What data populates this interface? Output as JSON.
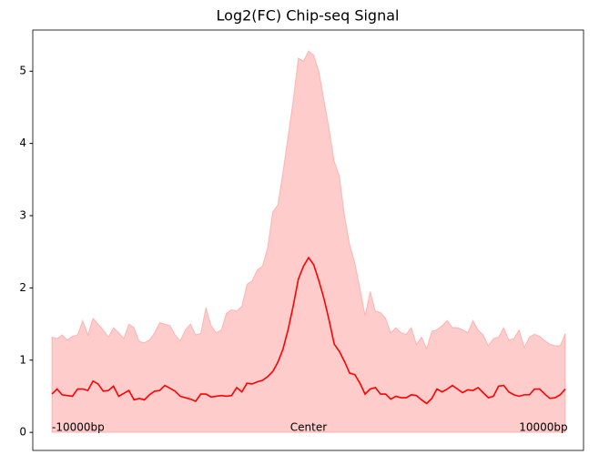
{
  "chart_data": {
    "type": "line",
    "title": "Log2(FC) Chip-seq Signal",
    "x": [
      -10000,
      -9800,
      -9600,
      -9400,
      -9200,
      -9000,
      -8800,
      -8600,
      -8400,
      -8200,
      -8000,
      -7800,
      -7600,
      -7400,
      -7200,
      -7000,
      -6800,
      -6600,
      -6400,
      -6200,
      -6000,
      -5800,
      -5600,
      -5400,
      -5200,
      -5000,
      -4800,
      -4600,
      -4400,
      -4200,
      -4000,
      -3800,
      -3600,
      -3400,
      -3200,
      -3000,
      -2800,
      -2600,
      -2400,
      -2200,
      -2000,
      -1800,
      -1600,
      -1400,
      -1200,
      -1000,
      -800,
      -600,
      -400,
      -200,
      0,
      200,
      400,
      600,
      800,
      1000,
      1200,
      1400,
      1600,
      1800,
      2000,
      2200,
      2400,
      2600,
      2800,
      3000,
      3200,
      3400,
      3600,
      3800,
      4000,
      4200,
      4400,
      4600,
      4800,
      5000,
      5200,
      5400,
      5600,
      5800,
      6000,
      6200,
      6400,
      6600,
      6800,
      7000,
      7200,
      7400,
      7600,
      7800,
      8000,
      8200,
      8400,
      8600,
      8800,
      9000,
      9200,
      9400,
      9600,
      9800,
      10000
    ],
    "line": {
      "color": "#ff0000",
      "values": [
        0.53,
        0.6,
        0.52,
        0.51,
        0.5,
        0.6,
        0.6,
        0.58,
        0.71,
        0.67,
        0.57,
        0.58,
        0.64,
        0.5,
        0.54,
        0.58,
        0.45,
        0.47,
        0.45,
        0.52,
        0.57,
        0.58,
        0.65,
        0.61,
        0.57,
        0.5,
        0.48,
        0.46,
        0.43,
        0.53,
        0.53,
        0.49,
        0.5,
        0.51,
        0.5,
        0.51,
        0.62,
        0.56,
        0.68,
        0.67,
        0.7,
        0.72,
        0.77,
        0.84,
        0.97,
        1.15,
        1.42,
        1.75,
        2.12,
        2.3,
        2.42,
        2.32,
        2.1,
        1.85,
        1.55,
        1.22,
        1.12,
        0.98,
        0.82,
        0.8,
        0.68,
        0.53,
        0.6,
        0.62,
        0.53,
        0.53,
        0.46,
        0.5,
        0.48,
        0.48,
        0.52,
        0.51,
        0.45,
        0.4,
        0.47,
        0.6,
        0.56,
        0.6,
        0.65,
        0.6,
        0.55,
        0.59,
        0.58,
        0.62,
        0.55,
        0.48,
        0.5,
        0.64,
        0.65,
        0.56,
        0.52,
        0.5,
        0.52,
        0.52,
        0.6,
        0.6,
        0.53,
        0.47,
        0.48,
        0.52,
        0.6
      ]
    },
    "band": {
      "color": "#ff0000",
      "upper": [
        1.32,
        1.3,
        1.35,
        1.28,
        1.33,
        1.35,
        1.55,
        1.35,
        1.58,
        1.5,
        1.42,
        1.32,
        1.45,
        1.38,
        1.3,
        1.5,
        1.45,
        1.26,
        1.24,
        1.28,
        1.38,
        1.52,
        1.5,
        1.48,
        1.35,
        1.27,
        1.42,
        1.5,
        1.35,
        1.37,
        1.73,
        1.48,
        1.38,
        1.42,
        1.65,
        1.7,
        1.68,
        1.75,
        2.05,
        2.1,
        2.25,
        2.3,
        2.55,
        3.05,
        3.15,
        3.6,
        4.1,
        4.6,
        5.18,
        5.14,
        5.28,
        5.22,
        5.0,
        4.6,
        4.2,
        3.75,
        3.55,
        3.0,
        2.6,
        2.35,
        2.0,
        1.62,
        1.95,
        1.68,
        1.66,
        1.58,
        1.38,
        1.45,
        1.38,
        1.36,
        1.45,
        1.22,
        1.32,
        1.16,
        1.4,
        1.42,
        1.48,
        1.55,
        1.45,
        1.45,
        1.42,
        1.38,
        1.55,
        1.42,
        1.35,
        1.2,
        1.3,
        1.32,
        1.45,
        1.28,
        1.3,
        1.42,
        1.18,
        1.32,
        1.36,
        1.33,
        1.27,
        1.22,
        1.2,
        1.2,
        1.37
      ],
      "lower": [
        0,
        0,
        0,
        0,
        0,
        0,
        0,
        0,
        0,
        0,
        0,
        0,
        0,
        0,
        0,
        0,
        0,
        0,
        0,
        0,
        0,
        0,
        0,
        0,
        0,
        0,
        0,
        0,
        0,
        0,
        0,
        0,
        0,
        0,
        0,
        0,
        0,
        0,
        0,
        0,
        0,
        0,
        0,
        0,
        0,
        0,
        0,
        0,
        0,
        0,
        0,
        0,
        0,
        0,
        0,
        0,
        0,
        0,
        0,
        0,
        0,
        0,
        0,
        0,
        0,
        0,
        0,
        0,
        0,
        0,
        0,
        0,
        0,
        0,
        0,
        0,
        0,
        0,
        0,
        0,
        0,
        0,
        0,
        0,
        0,
        0,
        0,
        0,
        0,
        0,
        0,
        0,
        0,
        0,
        0,
        0,
        0,
        0,
        0,
        0,
        0
      ]
    },
    "annotations": [
      {
        "text": "-10000bp",
        "x": -10000,
        "y": 0,
        "ha": "start"
      },
      {
        "text": "Center",
        "x": 0,
        "y": 0,
        "ha": "middle"
      },
      {
        "text": "10000bp",
        "x": 8200,
        "y": 0,
        "ha": "start"
      }
    ],
    "xlim": [
      -10745,
      10710
    ],
    "ylim": [
      -0.25,
      5.57
    ],
    "yticks": [
      0,
      1,
      2,
      3,
      4,
      5
    ]
  }
}
